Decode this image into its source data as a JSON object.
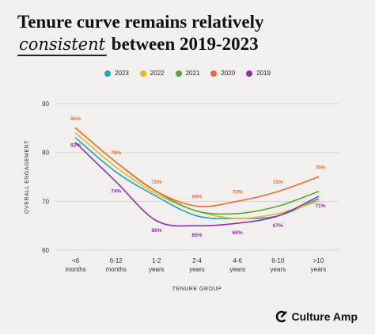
{
  "title": {
    "line1": "Tenure curve remains relatively",
    "emph": "consistent",
    "line2_rest": " between 2019-2023"
  },
  "brand": {
    "name": "Culture Amp",
    "icon": "culture-amp-logo-icon"
  },
  "chart_data": {
    "type": "line",
    "title": "Tenure curve remains relatively consistent between 2019-2023",
    "xlabel": "TENURE GROUP",
    "ylabel": "OVERALL ENGAGEMENT",
    "ylim": [
      60,
      90
    ],
    "yticks": [
      60,
      70,
      80,
      90
    ],
    "grid": true,
    "legend_position": "top-center",
    "categories": [
      "<6 months",
      "6-12 months",
      "1-2 years",
      "2-4 years",
      "4-6 years",
      "6-10 years",
      ">10 years"
    ],
    "category_lines": [
      [
        "<6",
        "months"
      ],
      [
        "6-12",
        "months"
      ],
      [
        "1-2",
        "years"
      ],
      [
        "2-4",
        "years"
      ],
      [
        "4-6",
        "years"
      ],
      [
        "6-10",
        "years"
      ],
      [
        ">10",
        "years"
      ]
    ],
    "series": [
      {
        "name": "2023",
        "color": "#1aa6b7",
        "values": [
          83,
          76,
          71,
          67,
          66.5,
          67,
          70.5
        ]
      },
      {
        "name": "2022",
        "color": "#f2b51c",
        "values": [
          84,
          77,
          71.5,
          68,
          66.5,
          67.5,
          70
        ]
      },
      {
        "name": "2021",
        "color": "#5ba630",
        "values": [
          85,
          78,
          72,
          68,
          67.5,
          69,
          72
        ]
      },
      {
        "name": "2020",
        "color": "#ee6c2f",
        "values": [
          85,
          78,
          72,
          69,
          70,
          72,
          75
        ],
        "labels": [
          "85%",
          "78%",
          "72%",
          "69%",
          "70%",
          "72%",
          "75%"
        ]
      },
      {
        "name": "2019",
        "color": "#8e2fae",
        "values": [
          82,
          74,
          66,
          65,
          65.5,
          67,
          71
        ],
        "labels": [
          "82%",
          "74%",
          "66%",
          "65%",
          "66%",
          "67%",
          "71%"
        ]
      }
    ]
  }
}
